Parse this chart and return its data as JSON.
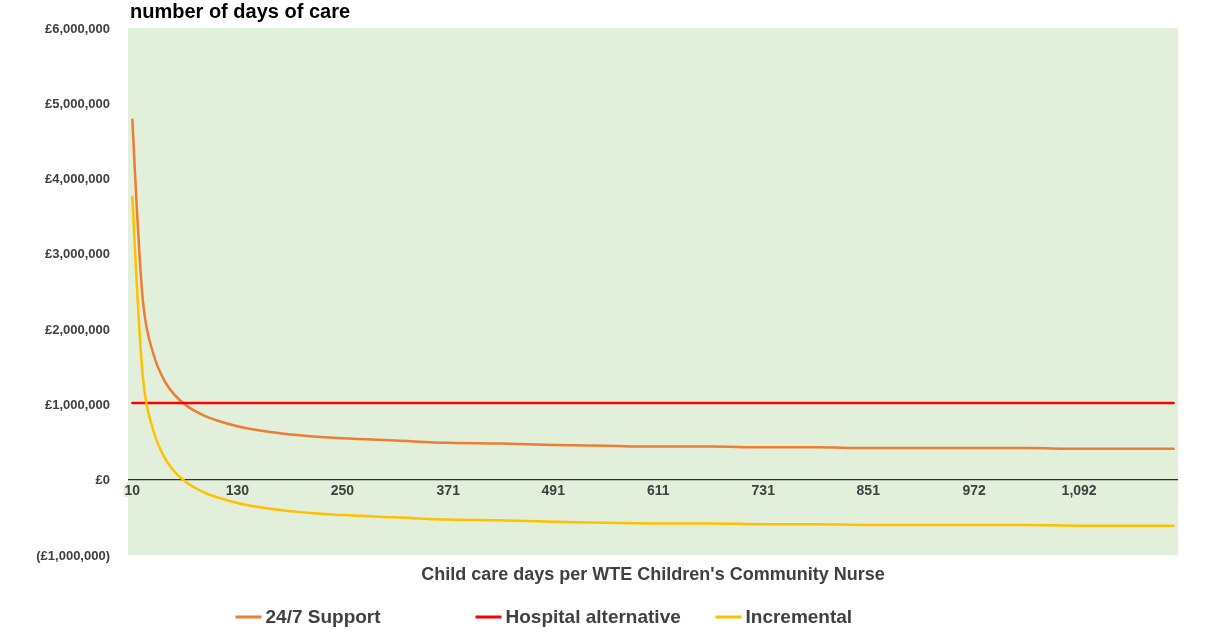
{
  "chart_data": {
    "type": "line",
    "title": "number of days of care",
    "xlabel": "Child care days per WTE Children's Community Nurse",
    "xlim": [
      5,
      1205
    ],
    "xticks": [
      10,
      130,
      250,
      371,
      491,
      611,
      731,
      851,
      972,
      {
        "value": 1092,
        "label": "1,092"
      }
    ],
    "ylim": [
      -1000000,
      6000000
    ],
    "yticks": [
      {
        "value": -1000000,
        "label": "(£1,000,000)"
      },
      {
        "value": 0,
        "label": "£0"
      },
      {
        "value": 1000000,
        "label": "£1,000,000"
      },
      {
        "value": 2000000,
        "label": "£2,000,000"
      },
      {
        "value": 3000000,
        "label": "£3,000,000"
      },
      {
        "value": 4000000,
        "label": "£4,000,000"
      },
      {
        "value": 5000000,
        "label": "£5,000,000"
      },
      {
        "value": 6000000,
        "label": "£6,000,000"
      }
    ],
    "x": [
      10,
      22,
      34,
      46,
      58,
      70,
      82,
      94,
      106,
      130,
      170,
      210,
      250,
      311,
      371,
      431,
      491,
      551,
      611,
      671,
      731,
      791,
      851,
      911,
      972,
      1032,
      1092,
      1152,
      1200
    ],
    "grid": false,
    "legend": "bottom",
    "marker": "none",
    "line_style": "solid",
    "series": [
      {
        "name": "24/7 Support",
        "color": "#ed7d31",
        "values": [
          4780000,
          2380000,
          1670000,
          1330000,
          1130000,
          1000000,
          910000,
          840000,
          790000,
          710000,
          630000,
          580000,
          550000,
          520000,
          490000,
          480000,
          460000,
          450000,
          440000,
          440000,
          430000,
          430000,
          420000,
          420000,
          420000,
          420000,
          410000,
          410000,
          410000
        ]
      },
      {
        "name": "Hospital alternative",
        "color": "#ff0000",
        "values": [
          1020000,
          1020000,
          1020000,
          1020000,
          1020000,
          1020000,
          1020000,
          1020000,
          1020000,
          1020000,
          1020000,
          1020000,
          1020000,
          1020000,
          1020000,
          1020000,
          1020000,
          1020000,
          1020000,
          1020000,
          1020000,
          1020000,
          1020000,
          1020000,
          1020000,
          1020000,
          1020000,
          1020000,
          1020000
        ]
      },
      {
        "name": "Incremental",
        "color": "#ffc000",
        "values": [
          3760000,
          1360000,
          650000,
          310000,
          110000,
          -20000,
          -110000,
          -180000,
          -230000,
          -310000,
          -390000,
          -440000,
          -470000,
          -500000,
          -530000,
          -540000,
          -560000,
          -570000,
          -580000,
          -580000,
          -590000,
          -590000,
          -600000,
          -600000,
          -600000,
          -600000,
          -610000,
          -610000,
          -610000
        ]
      }
    ]
  }
}
